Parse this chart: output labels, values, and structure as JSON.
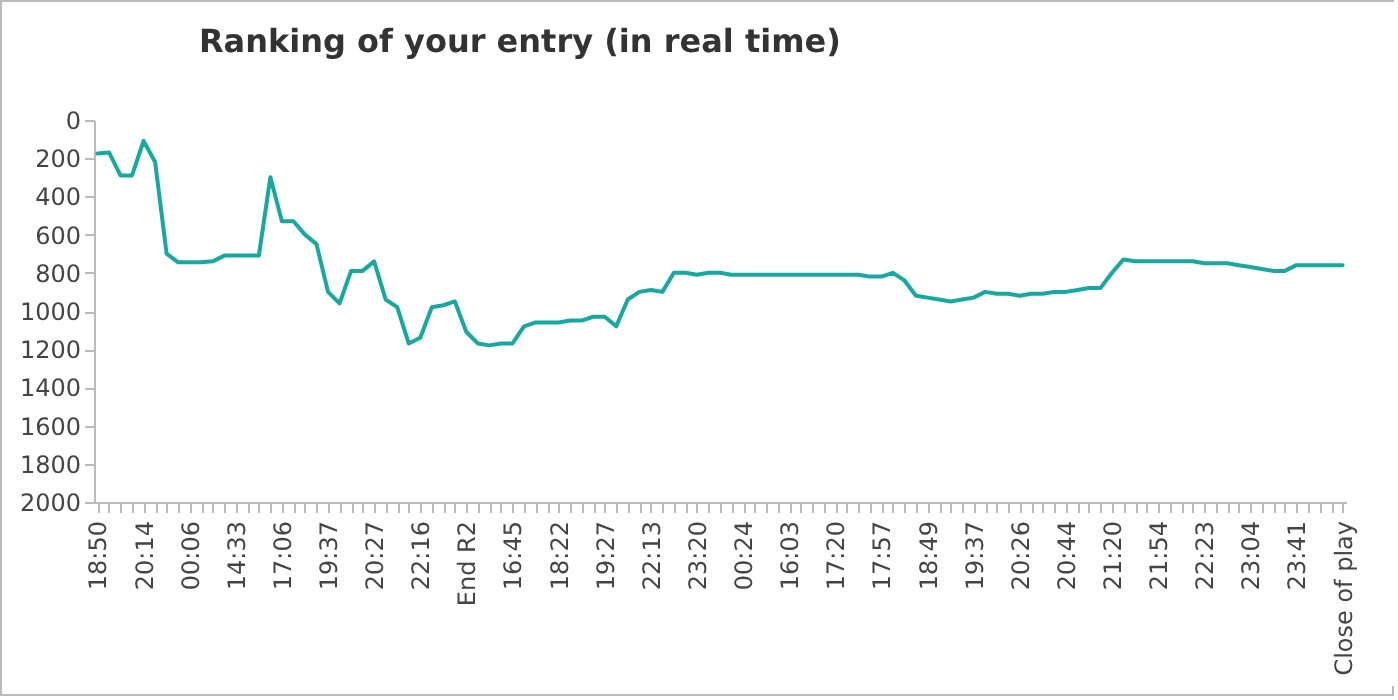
{
  "chart_data": {
    "type": "line",
    "title": "Ranking of your entry (in real time)",
    "categories": [
      "18:50",
      null,
      null,
      null,
      "20:14",
      null,
      null,
      null,
      "00:06",
      null,
      null,
      null,
      "14:33",
      null,
      null,
      null,
      "17:06",
      null,
      null,
      null,
      "19:37",
      null,
      null,
      null,
      "20:27",
      null,
      null,
      null,
      "22:16",
      null,
      null,
      null,
      "End R2",
      null,
      null,
      null,
      "16:45",
      null,
      null,
      null,
      "18:22",
      null,
      null,
      null,
      "19:27",
      null,
      null,
      null,
      "22:13",
      null,
      null,
      null,
      "23:20",
      null,
      null,
      null,
      "00:24",
      null,
      null,
      null,
      "16:03",
      null,
      null,
      null,
      "17:20",
      null,
      null,
      null,
      "17:57",
      null,
      null,
      null,
      "18:49",
      null,
      null,
      null,
      "19:37",
      null,
      null,
      null,
      "20:26",
      null,
      null,
      null,
      "20:44",
      null,
      null,
      null,
      "21:20",
      null,
      null,
      null,
      "21:54",
      null,
      null,
      null,
      "22:23",
      null,
      null,
      null,
      "23:04",
      null,
      null,
      null,
      "23:41",
      null,
      null,
      null,
      "Close of play"
    ],
    "series": [
      {
        "color": "#17a9a1",
        "values": [
          175,
          170,
          290,
          290,
          110,
          220,
          700,
          745,
          745,
          745,
          740,
          710,
          710,
          710,
          710,
          300,
          530,
          530,
          600,
          650,
          900,
          960,
          790,
          790,
          740,
          940,
          980,
          1170,
          1140,
          980,
          970,
          950,
          1110,
          1170,
          1180,
          1170,
          1170,
          1080,
          1060,
          1060,
          1060,
          1050,
          1050,
          1030,
          1030,
          1080,
          940,
          900,
          890,
          900,
          800,
          800,
          810,
          800,
          800,
          810,
          810,
          810,
          810,
          810,
          810,
          810,
          810,
          810,
          810,
          810,
          810,
          820,
          820,
          800,
          840,
          920,
          930,
          940,
          950,
          940,
          930,
          900,
          910,
          910,
          920,
          910,
          910,
          900,
          900,
          890,
          880,
          880,
          800,
          730,
          740,
          740,
          740,
          740,
          740,
          740,
          750,
          750,
          750,
          760,
          770,
          780,
          790,
          790,
          760,
          760,
          760,
          760,
          760
        ]
      }
    ],
    "ylim": [
      2000,
      0
    ],
    "yticks": [
      0,
      200,
      400,
      600,
      800,
      1000,
      1200,
      1400,
      1600,
      1800,
      2000
    ],
    "grid": false,
    "marker": "none",
    "line_style": "solid"
  }
}
